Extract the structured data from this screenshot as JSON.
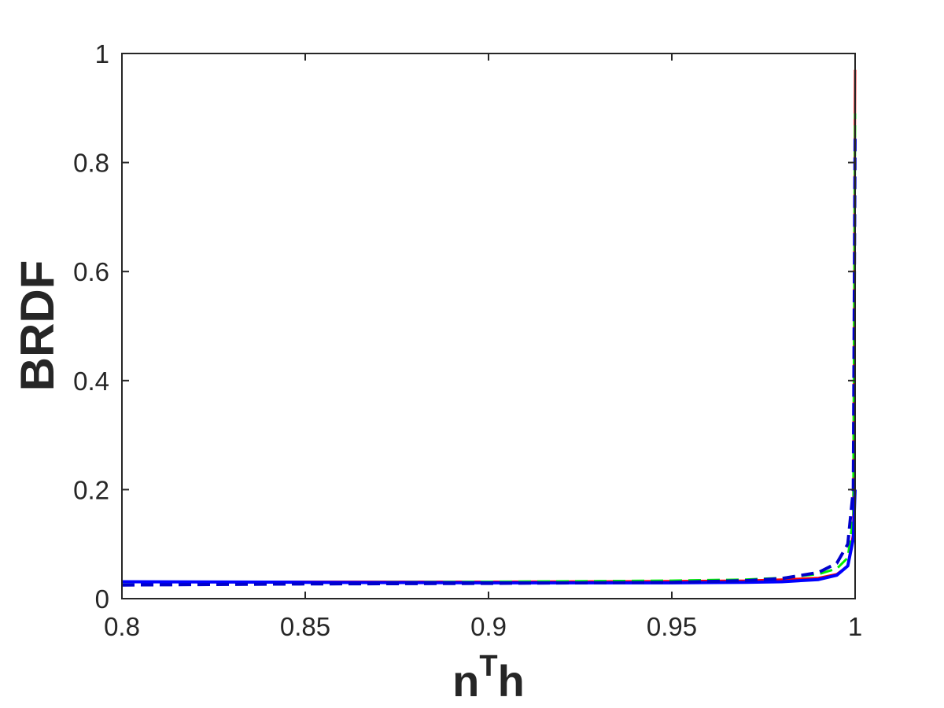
{
  "chart_data": {
    "type": "line",
    "title": "",
    "xlabel": "n",
    "xlabel_superscript": "T",
    "xlabel_suffix": "h",
    "ylabel": "BRDF",
    "xlim": [
      0.8,
      1.0
    ],
    "ylim": [
      0,
      1.0
    ],
    "grid": false,
    "legend": "none",
    "xticks": [
      {
        "value": 0.8,
        "label": "0.8"
      },
      {
        "value": 0.85,
        "label": "0.85"
      },
      {
        "value": 0.9,
        "label": "0.9"
      },
      {
        "value": 0.95,
        "label": "0.95"
      },
      {
        "value": 1.0,
        "label": "1"
      }
    ],
    "yticks": [
      {
        "value": 0,
        "label": "0"
      },
      {
        "value": 0.2,
        "label": "0.2"
      },
      {
        "value": 0.4,
        "label": "0.4"
      },
      {
        "value": 0.6,
        "label": "0.6"
      },
      {
        "value": 0.8,
        "label": "0.8"
      },
      {
        "value": 1.0,
        "label": "1"
      }
    ],
    "series": [
      {
        "color": "#ff0000",
        "dash": "solid",
        "width": 3,
        "x": [
          0.8,
          0.85,
          0.9,
          0.95,
          0.97,
          0.98,
          0.99,
          0.995,
          0.998,
          0.9995,
          1.0
        ],
        "y": [
          0.031,
          0.031,
          0.031,
          0.032,
          0.033,
          0.035,
          0.038,
          0.045,
          0.06,
          0.12,
          0.97
        ]
      },
      {
        "color": "#00ee00",
        "dash": "dashed",
        "width": 3,
        "x": [
          0.8,
          0.85,
          0.9,
          0.95,
          0.97,
          0.98,
          0.99,
          0.995,
          0.998,
          0.9995,
          1.0
        ],
        "y": [
          0.03,
          0.03,
          0.031,
          0.033,
          0.035,
          0.038,
          0.045,
          0.055,
          0.075,
          0.15,
          0.89
        ]
      },
      {
        "color": "#0000ff",
        "dash": "solid",
        "width": 4,
        "x": [
          0.8,
          0.85,
          0.9,
          0.95,
          0.97,
          0.98,
          0.99,
          0.995,
          0.998,
          0.9995,
          1.0
        ],
        "y": [
          0.031,
          0.03,
          0.029,
          0.029,
          0.03,
          0.031,
          0.035,
          0.043,
          0.06,
          0.11,
          0.2
        ]
      },
      {
        "color": "#0000cc",
        "dash": "dashed",
        "width": 4,
        "x": [
          0.8,
          0.85,
          0.9,
          0.95,
          0.97,
          0.98,
          0.99,
          0.995,
          0.998,
          0.9995,
          1.0
        ],
        "y": [
          0.025,
          0.027,
          0.028,
          0.03,
          0.033,
          0.037,
          0.048,
          0.065,
          0.1,
          0.2,
          0.85
        ]
      }
    ]
  }
}
